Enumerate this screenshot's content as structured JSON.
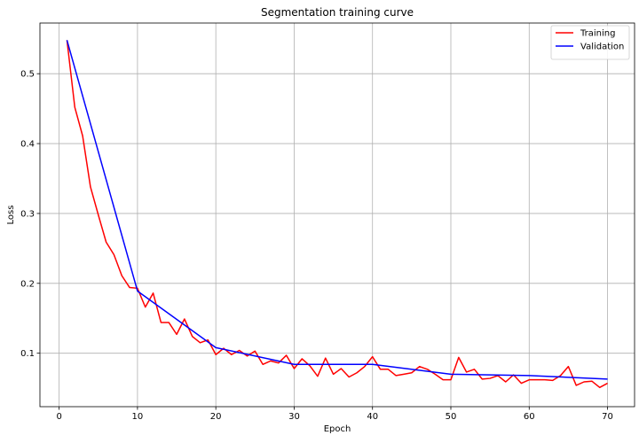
{
  "chart_data": {
    "type": "line",
    "title": "Segmentation training curve",
    "xlabel": "Epoch",
    "ylabel": "Loss",
    "xlim": [
      -2.45,
      73.45
    ],
    "ylim": [
      0.0235,
      0.5725
    ],
    "xticks": [
      0,
      10,
      20,
      30,
      40,
      50,
      60,
      70
    ],
    "yticks": [
      0.1,
      0.2,
      0.3,
      0.4,
      0.5
    ],
    "grid": true,
    "legend_position": "top-right",
    "series": [
      {
        "name": "Training",
        "color": "#ff0000",
        "x": [
          1,
          2,
          3,
          4,
          5,
          6,
          7,
          8,
          9,
          10,
          11,
          12,
          13,
          14,
          15,
          16,
          17,
          18,
          19,
          20,
          21,
          22,
          23,
          24,
          25,
          26,
          27,
          28,
          29,
          30,
          31,
          32,
          33,
          34,
          35,
          36,
          37,
          38,
          39,
          40,
          41,
          42,
          43,
          44,
          45,
          46,
          47,
          48,
          49,
          50,
          51,
          52,
          53,
          54,
          55,
          56,
          57,
          58,
          59,
          60,
          61,
          62,
          63,
          64,
          65,
          66,
          67,
          68,
          69,
          70
        ],
        "values": [
          0.548,
          0.452,
          0.411,
          0.338,
          0.298,
          0.259,
          0.241,
          0.211,
          0.194,
          0.193,
          0.166,
          0.186,
          0.144,
          0.144,
          0.127,
          0.149,
          0.124,
          0.115,
          0.119,
          0.098,
          0.107,
          0.098,
          0.104,
          0.096,
          0.103,
          0.084,
          0.089,
          0.086,
          0.097,
          0.078,
          0.092,
          0.082,
          0.067,
          0.093,
          0.07,
          0.078,
          0.066,
          0.072,
          0.081,
          0.095,
          0.077,
          0.077,
          0.068,
          0.07,
          0.072,
          0.081,
          0.077,
          0.07,
          0.062,
          0.062,
          0.094,
          0.073,
          0.077,
          0.063,
          0.064,
          0.068,
          0.059,
          0.069,
          0.057,
          0.062,
          0.062,
          0.062,
          0.061,
          0.068,
          0.081,
          0.054,
          0.059,
          0.06,
          0.051,
          0.057
        ]
      },
      {
        "name": "Validation",
        "color": "#0000ff",
        "x": [
          1,
          10,
          20,
          30,
          40,
          50,
          60,
          70
        ],
        "values": [
          0.548,
          0.189,
          0.108,
          0.084,
          0.084,
          0.07,
          0.068,
          0.063
        ]
      }
    ]
  }
}
